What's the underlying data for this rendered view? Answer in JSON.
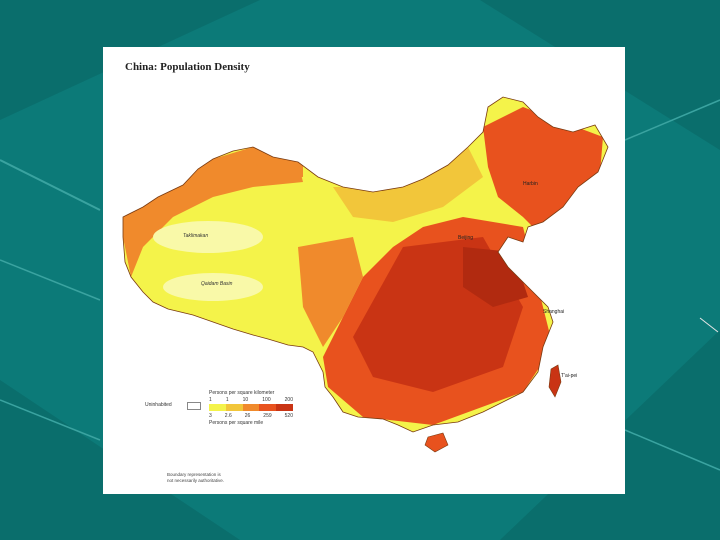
{
  "slide": {
    "background": "#0c7a78",
    "card_background": "#ffffff"
  },
  "map": {
    "title": "China: Population Density",
    "uninhabited_label": "Uninhabited",
    "legend": {
      "top_caption": "Persons per square kilometer",
      "top_ticks": [
        "1",
        "1",
        "10",
        "100",
        "200"
      ],
      "bottom_ticks": [
        "3",
        "2.6",
        "26",
        "259",
        "520"
      ],
      "bottom_caption": "Persons per square mile",
      "colors": [
        "#f4f34a",
        "#f2c63a",
        "#f08a2c",
        "#e8521e",
        "#c93414"
      ]
    },
    "source_note": [
      "Boundary representation is",
      "not necessarily authoritative."
    ],
    "place_labels": {
      "taklimakan": "Taklimakan",
      "qaidam": "Qaidam Basin"
    },
    "city_labels": {
      "shanghai": "Shanghai",
      "taipei": "T'ai-pei",
      "harbin": "Harbin",
      "beijing": "Beijing"
    }
  }
}
